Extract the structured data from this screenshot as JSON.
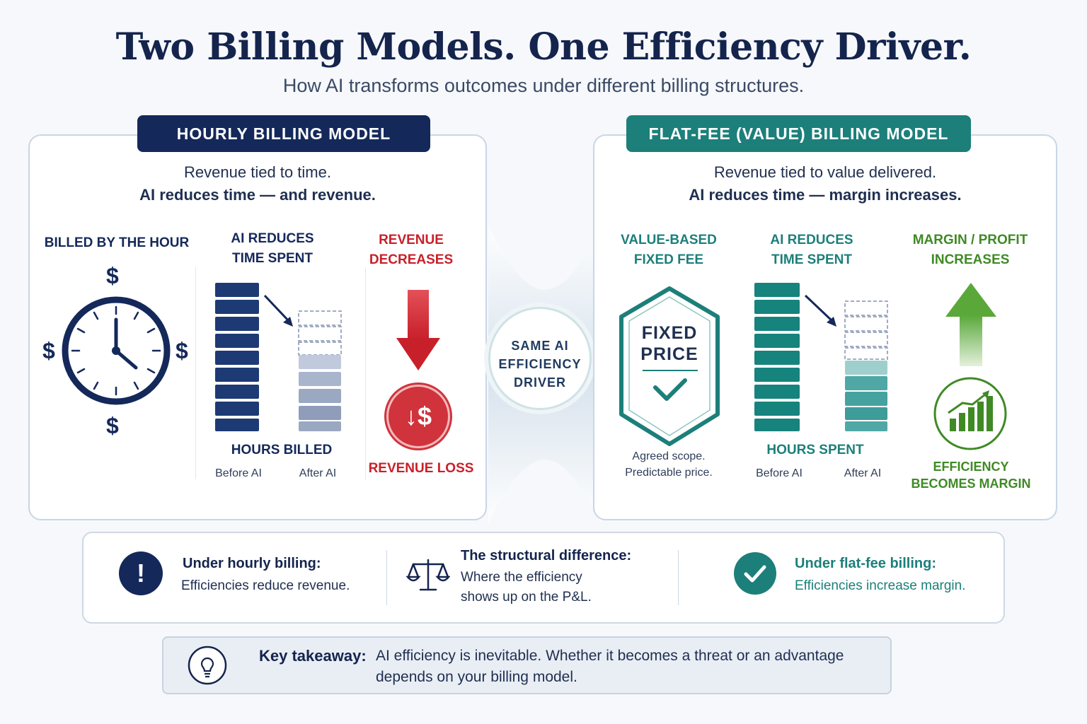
{
  "header": {
    "title": "Two Billing Models. One Efficiency Driver.",
    "subtitle": "How AI transforms outcomes under different billing structures."
  },
  "hourly": {
    "badge": "HOURLY BILLING MODEL",
    "line1": "Revenue tied to time.",
    "line2": "AI reduces time — and revenue.",
    "col1_label": "BILLED BY THE HOUR",
    "col2_label_1": "AI REDUCES",
    "col2_label_2": "TIME SPENT",
    "col3_label_1": "REVENUE",
    "col3_label_2": "DECREASES",
    "chart_caption": "HOURS BILLED",
    "before": "Before AI",
    "after": "After AI",
    "revenue_loss": "REVENUE LOSS",
    "dollar": "$",
    "loss_icon_text": "↓$"
  },
  "center": {
    "line1": "SAME AI",
    "line2": "EFFICIENCY",
    "line3": "DRIVER"
  },
  "flat": {
    "badge": "FLAT-FEE (VALUE) BILLING MODEL",
    "line1": "Revenue tied to value delivered.",
    "line2": "AI reduces time — margin increases.",
    "col1_label_1": "VALUE-BASED",
    "col1_label_2": "FIXED FEE",
    "col2_label_1": "AI REDUCES",
    "col2_label_2": "TIME SPENT",
    "col3_label_1": "MARGIN / PROFIT",
    "col3_label_2": "INCREASES",
    "fixed_1": "FIXED",
    "fixed_2": "PRICE",
    "scope_1": "Agreed scope.",
    "scope_2": "Predictable price.",
    "chart_caption": "HOURS SPENT",
    "before": "Before AI",
    "after": "After AI",
    "eff_1": "EFFICIENCY",
    "eff_2": "BECOMES MARGIN"
  },
  "summary": {
    "hourly_title": "Under hourly billing:",
    "hourly_text": "Efficiencies reduce revenue.",
    "diff_title": "The structural difference:",
    "diff_text_1": "Where the efficiency",
    "diff_text_2": "shows up on the P&L.",
    "flat_title": "Under flat-fee billing:",
    "flat_text": "Efficiencies increase margin."
  },
  "takeaway": {
    "label": "Key takeaway:",
    "text_1": "AI efficiency is inevitable. Whether it becomes a threat or an advantage",
    "text_2": "depends on your billing model."
  },
  "colors": {
    "navy": "#14285a",
    "teal": "#1c7f7a",
    "red": "#c8202a",
    "green": "#3f8a25"
  },
  "icons": [
    "clock-icon",
    "dollar-icon",
    "arrow-down-icon",
    "revenue-loss-icon",
    "shield-check-icon",
    "arrow-up-icon",
    "growth-chart-icon",
    "exclamation-icon",
    "scales-icon",
    "check-circle-icon",
    "lightbulb-icon"
  ]
}
